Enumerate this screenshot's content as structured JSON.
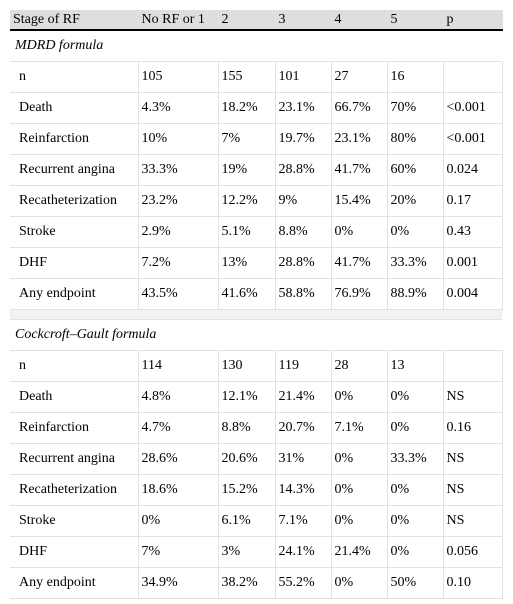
{
  "table": {
    "header": [
      "Stage of RF",
      "No RF or 1",
      "2",
      "3",
      "4",
      "5",
      "p"
    ],
    "sections": [
      {
        "title": "MDRD formula",
        "rows": [
          [
            "n",
            "105",
            "155",
            "101",
            "27",
            "16",
            ""
          ],
          [
            "Death",
            "4.3%",
            "18.2%",
            "23.1%",
            "66.7%",
            "70%",
            "<0.001"
          ],
          [
            "Reinfarction",
            "10%",
            "7%",
            "19.7%",
            "23.1%",
            "80%",
            "<0.001"
          ],
          [
            "Recurrent angina",
            "33.3%",
            "19%",
            "28.8%",
            "41.7%",
            "60%",
            "0.024"
          ],
          [
            "Recatheterization",
            "23.2%",
            "12.2%",
            "9%",
            "15.4%",
            "20%",
            "0.17"
          ],
          [
            "Stroke",
            "2.9%",
            "5.1%",
            "8.8%",
            "0%",
            "0%",
            "0.43"
          ],
          [
            "DHF",
            "7.2%",
            "13%",
            "28.8%",
            "41.7%",
            "33.3%",
            "0.001"
          ],
          [
            "Any endpoint",
            "43.5%",
            "41.6%",
            "58.8%",
            "76.9%",
            "88.9%",
            "0.004"
          ]
        ]
      },
      {
        "title": "Cockcroft–Gault formula",
        "rows": [
          [
            "n",
            "114",
            "130",
            "119",
            "28",
            "13",
            ""
          ],
          [
            "Death",
            "4.8%",
            "12.1%",
            "21.4%",
            "0%",
            "0%",
            "NS"
          ],
          [
            "Reinfarction",
            "4.7%",
            "8.8%",
            "20.7%",
            "7.1%",
            "0%",
            "0.16"
          ],
          [
            "Recurrent angina",
            "28.6%",
            "20.6%",
            "31%",
            "0%",
            "33.3%",
            "NS"
          ],
          [
            "Recatheterization",
            "18.6%",
            "15.2%",
            "14.3%",
            "0%",
            "0%",
            "NS"
          ],
          [
            "Stroke",
            "0%",
            "6.1%",
            "7.1%",
            "0%",
            "0%",
            "NS"
          ],
          [
            "DHF",
            "7%",
            "3%",
            "24.1%",
            "21.4%",
            "0%",
            "0.056"
          ],
          [
            "Any endpoint",
            "34.9%",
            "38.2%",
            "55.2%",
            "0%",
            "50%",
            "0.10"
          ]
        ]
      }
    ]
  }
}
